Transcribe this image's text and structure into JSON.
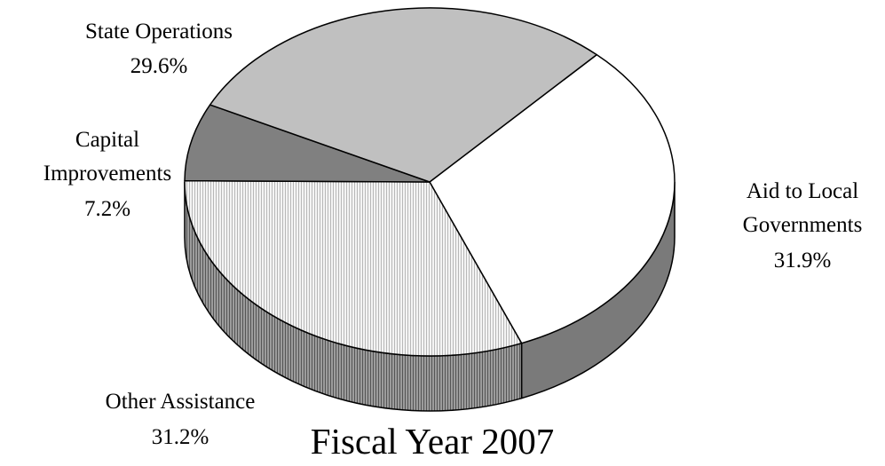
{
  "chart_data": {
    "type": "pie",
    "title": "Fiscal Year 2007",
    "three_d": true,
    "legend": "none",
    "slices": [
      {
        "name": "Aid to Local Governments",
        "value": 31.9,
        "label": "31.9%",
        "label_lines": [
          "Aid to Local",
          "Governments",
          "31.9%"
        ],
        "fill": "#ffffff",
        "pattern": "none"
      },
      {
        "name": "Other Assistance",
        "value": 31.2,
        "label": "31.2%",
        "label_lines": [
          "Other Assistance",
          "31.2%"
        ],
        "fill": "#f4f4f4",
        "pattern": "vertical-lines"
      },
      {
        "name": "Capital Improvements",
        "value": 7.2,
        "label": "7.2%",
        "label_lines": [
          "Capital",
          "Improvements",
          "7.2%"
        ],
        "fill": "#808080",
        "pattern": "none"
      },
      {
        "name": "State Operations",
        "value": 29.6,
        "label": "29.6%",
        "label_lines": [
          "State Operations",
          "29.6%"
        ],
        "fill": "#c0c0c0",
        "pattern": "none"
      }
    ],
    "side_colors": {
      "plain": "#7a7a7a",
      "patterned": "#8c8c8c"
    },
    "outline_color": "#000000"
  }
}
